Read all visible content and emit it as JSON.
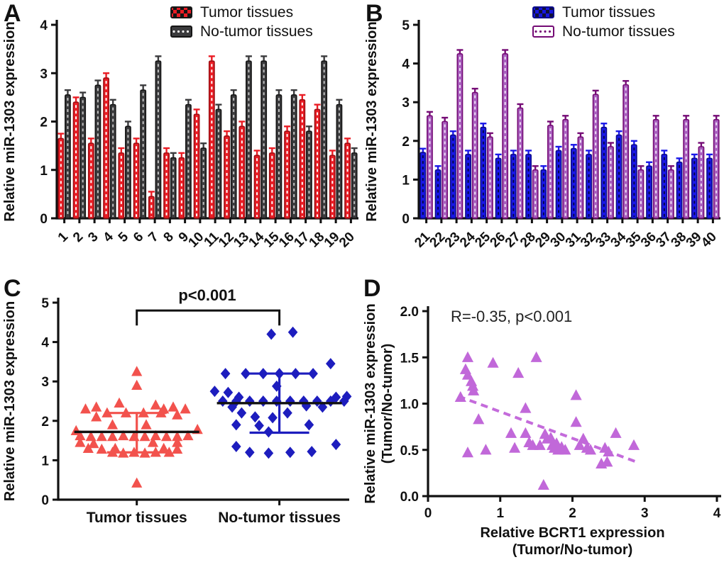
{
  "chart_data": [
    {
      "panel": "A",
      "type": "bar",
      "ylabel": "Relative  miR-1303 expression",
      "ylim": [
        0,
        4
      ],
      "yticks": [
        0,
        1,
        2,
        3,
        4
      ],
      "categories": [
        "1",
        "2",
        "3",
        "4",
        "5",
        "6",
        "7",
        "8",
        "9",
        "10",
        "11",
        "12",
        "13",
        "14",
        "15",
        "16",
        "17",
        "18",
        "19",
        "20"
      ],
      "error": 0.1,
      "legend_position": "top-right",
      "series": [
        {
          "name": "Tumor tissues",
          "swatch": "red-checker",
          "color": "#EA1C24",
          "stroke": "#9E1014",
          "dash": "#FFFFFF",
          "whisker": "#EA1C24",
          "values": [
            1.65,
            2.4,
            1.55,
            2.9,
            1.35,
            1.55,
            0.45,
            1.35,
            1.25,
            2.15,
            3.25,
            1.7,
            1.9,
            1.3,
            1.35,
            1.8,
            2.45,
            2.25,
            1.3,
            1.55
          ]
        },
        {
          "name": "No-tumor tissues",
          "swatch": "dark-dots",
          "color": "#3B3B3D",
          "stroke": "#161616",
          "dash": "#C0C0C0",
          "whisker": "#3B3B3D",
          "values": [
            2.55,
            2.5,
            2.75,
            2.35,
            1.9,
            2.65,
            3.25,
            1.25,
            2.35,
            1.45,
            2.25,
            2.55,
            3.25,
            3.25,
            2.55,
            2.55,
            1.8,
            3.25,
            2.35,
            1.35
          ]
        }
      ]
    },
    {
      "panel": "B",
      "type": "bar",
      "ylabel": "Relative miR-1303 expression",
      "ylim": [
        0,
        5
      ],
      "yticks": [
        0,
        1,
        2,
        3,
        4,
        5
      ],
      "categories": [
        "21",
        "22",
        "23",
        "24",
        "25",
        "26",
        "27",
        "28",
        "29",
        "30",
        "31",
        "32",
        "33",
        "34",
        "35",
        "36",
        "37",
        "38",
        "39",
        "40"
      ],
      "error": 0.1,
      "legend_position": "top-right",
      "series": [
        {
          "name": "Tumor tissues",
          "swatch": "blue-checker",
          "color": "#1A18E8",
          "stroke": "#0B0B8A",
          "dash": "#05054A",
          "whisker": "#1A18E8",
          "values": [
            1.7,
            1.25,
            2.15,
            1.65,
            2.35,
            1.55,
            1.65,
            1.65,
            1.25,
            1.75,
            1.8,
            1.65,
            2.35,
            2.15,
            1.9,
            1.35,
            1.65,
            1.45,
            1.55,
            1.55
          ]
        },
        {
          "name": "No-tumor tissues",
          "swatch": "purple-dots",
          "color": "#A85FBE",
          "stroke": "#750B75",
          "dash": "#EFDFF6",
          "whisker": "#750B75",
          "values": [
            2.65,
            2.5,
            4.25,
            3.25,
            2.1,
            4.25,
            2.85,
            1.25,
            2.4,
            2.55,
            2.1,
            3.2,
            1.85,
            3.45,
            1.25,
            2.55,
            1.25,
            2.55,
            1.85,
            2.55
          ]
        }
      ]
    },
    {
      "panel": "C",
      "type": "scatter-groups",
      "ylabel": "Relative miR-1303 expression",
      "ylim": [
        0,
        5
      ],
      "yticks": [
        0,
        1,
        2,
        3,
        4,
        5
      ],
      "significance": {
        "label": "p<0.001",
        "y": 4.8,
        "drop": 0.38
      },
      "groups": [
        {
          "name": "Tumor tissues",
          "marker": "triangle",
          "color": "#F2524D",
          "mean": 1.72,
          "sd_low": 1.2,
          "sd_high": 2.2,
          "mean_color": "#111111",
          "points": [
            [
              0,
              3.25
            ],
            [
              0,
              2.9
            ],
            [
              -0.13,
              2.45
            ],
            [
              0.14,
              2.4
            ],
            [
              -0.3,
              2.35
            ],
            [
              0.27,
              2.35
            ],
            [
              -0.38,
              2.3
            ],
            [
              0.2,
              2.3
            ],
            [
              0.36,
              2.3
            ],
            [
              -0.22,
              2.2
            ],
            [
              -0.08,
              2.2
            ],
            [
              0.05,
              2.2
            ],
            [
              0.18,
              2.2
            ],
            [
              -0.3,
              2.1
            ],
            [
              0.3,
              2.15
            ],
            [
              -0.18,
              1.9
            ],
            [
              0.07,
              1.9
            ],
            [
              -0.45,
              1.75
            ],
            [
              0.45,
              1.78
            ],
            [
              -0.42,
              1.62
            ],
            [
              -0.34,
              1.6
            ],
            [
              -0.26,
              1.6
            ],
            [
              -0.18,
              1.6
            ],
            [
              -0.1,
              1.62
            ],
            [
              -0.02,
              1.6
            ],
            [
              0.06,
              1.6
            ],
            [
              0.14,
              1.62
            ],
            [
              0.22,
              1.6
            ],
            [
              0.3,
              1.6
            ],
            [
              0.38,
              1.62
            ],
            [
              -0.42,
              1.45
            ],
            [
              -0.32,
              1.42
            ],
            [
              0.12,
              1.45
            ],
            [
              0.3,
              1.45
            ],
            [
              -0.36,
              1.3
            ],
            [
              -0.26,
              1.28
            ],
            [
              -0.16,
              1.3
            ],
            [
              0.2,
              1.3
            ],
            [
              0.3,
              1.28
            ],
            [
              -0.18,
              1.2
            ],
            [
              -0.1,
              1.18
            ],
            [
              -0.02,
              1.2
            ],
            [
              0.06,
              1.18
            ],
            [
              0.14,
              1.2
            ],
            [
              0.24,
              1.2
            ],
            [
              0,
              0.42
            ]
          ]
        },
        {
          "name": "No-tumor tissues",
          "marker": "diamond",
          "color": "#1D1DBE",
          "mean": 2.45,
          "sd_low": 1.7,
          "sd_high": 3.2,
          "mean_color": "#111111",
          "points": [
            [
              -0.06,
              4.2
            ],
            [
              0.1,
              4.25
            ],
            [
              0.38,
              3.45
            ],
            [
              -0.4,
              3.2
            ],
            [
              -0.25,
              3.2
            ],
            [
              -0.12,
              3.2
            ],
            [
              0,
              3.2
            ],
            [
              0.12,
              3.2
            ],
            [
              0.25,
              3.2
            ],
            [
              -0.02,
              2.88
            ],
            [
              -0.48,
              2.75
            ],
            [
              -0.38,
              2.72
            ],
            [
              -0.3,
              2.6
            ],
            [
              0.42,
              2.6
            ],
            [
              0.5,
              2.62
            ],
            [
              -0.42,
              2.5
            ],
            [
              -0.32,
              2.5
            ],
            [
              -0.22,
              2.5
            ],
            [
              -0.12,
              2.5
            ],
            [
              -0.02,
              2.5
            ],
            [
              0.08,
              2.5
            ],
            [
              0.18,
              2.5
            ],
            [
              0.28,
              2.5
            ],
            [
              0.38,
              2.5
            ],
            [
              0.48,
              2.5
            ],
            [
              -0.35,
              2.35
            ],
            [
              0.2,
              2.38
            ],
            [
              0.32,
              2.35
            ],
            [
              -0.28,
              2.2
            ],
            [
              0.06,
              2.2
            ],
            [
              -0.18,
              2.1
            ],
            [
              -0.05,
              2.08
            ],
            [
              -0.32,
              1.9
            ],
            [
              -0.15,
              1.88
            ],
            [
              0.22,
              1.9
            ],
            [
              -0.08,
              1.72
            ],
            [
              -0.32,
              1.35
            ],
            [
              0.42,
              1.4
            ],
            [
              -0.22,
              1.2
            ],
            [
              -0.08,
              1.18
            ],
            [
              0.08,
              1.2
            ],
            [
              0.24,
              1.22
            ]
          ]
        }
      ]
    },
    {
      "panel": "D",
      "type": "scatter",
      "annotation": "R=-0.35, p<0.001",
      "xlabel_lines": [
        "Relative BCRT1 expression",
        "(Tumor/No-tumor)"
      ],
      "ylabel_lines": [
        "Relative miR-1303 expression",
        "(Tumor/No-tumor)"
      ],
      "xlim": [
        0,
        4
      ],
      "ylim": [
        0,
        2
      ],
      "xticks": [
        "0",
        "1",
        "2",
        "3",
        "4"
      ],
      "yticks": [
        "0.0",
        "0.5",
        "1.0",
        "1.5",
        "2.0"
      ],
      "marker": "triangle",
      "color": "#C168D9",
      "trend": {
        "x1": 0.42,
        "y1": 1.08,
        "x2": 2.92,
        "y2": 0.36,
        "color": "#C46BDB",
        "dash": true
      },
      "points": [
        [
          0.45,
          1.07
        ],
        [
          0.55,
          1.5
        ],
        [
          0.52,
          1.37
        ],
        [
          0.55,
          1.31
        ],
        [
          0.6,
          1.24
        ],
        [
          0.62,
          1.19
        ],
        [
          0.63,
          1.14
        ],
        [
          0.55,
          0.47
        ],
        [
          0.7,
          0.83
        ],
        [
          0.8,
          0.5
        ],
        [
          0.9,
          1.44
        ],
        [
          1.15,
          0.68
        ],
        [
          1.25,
          1.33
        ],
        [
          1.2,
          0.52
        ],
        [
          1.35,
          0.95
        ],
        [
          1.35,
          0.68
        ],
        [
          1.4,
          0.58
        ],
        [
          1.45,
          0.55
        ],
        [
          1.5,
          1.5
        ],
        [
          1.55,
          0.55
        ],
        [
          1.6,
          0.12
        ],
        [
          1.62,
          0.67
        ],
        [
          1.65,
          0.62
        ],
        [
          1.7,
          0.63
        ],
        [
          1.72,
          0.55
        ],
        [
          1.75,
          0.52
        ],
        [
          1.78,
          0.57
        ],
        [
          1.8,
          0.5
        ],
        [
          1.85,
          0.53
        ],
        [
          1.9,
          0.5
        ],
        [
          2.05,
          1.09
        ],
        [
          2.05,
          0.8
        ],
        [
          2.1,
          0.55
        ],
        [
          2.15,
          0.62
        ],
        [
          2.2,
          0.52
        ],
        [
          2.25,
          0.5
        ],
        [
          2.4,
          0.35
        ],
        [
          2.45,
          0.52
        ],
        [
          2.48,
          0.37
        ],
        [
          2.5,
          0.48
        ],
        [
          2.6,
          0.68
        ],
        [
          2.85,
          0.55
        ]
      ]
    }
  ]
}
